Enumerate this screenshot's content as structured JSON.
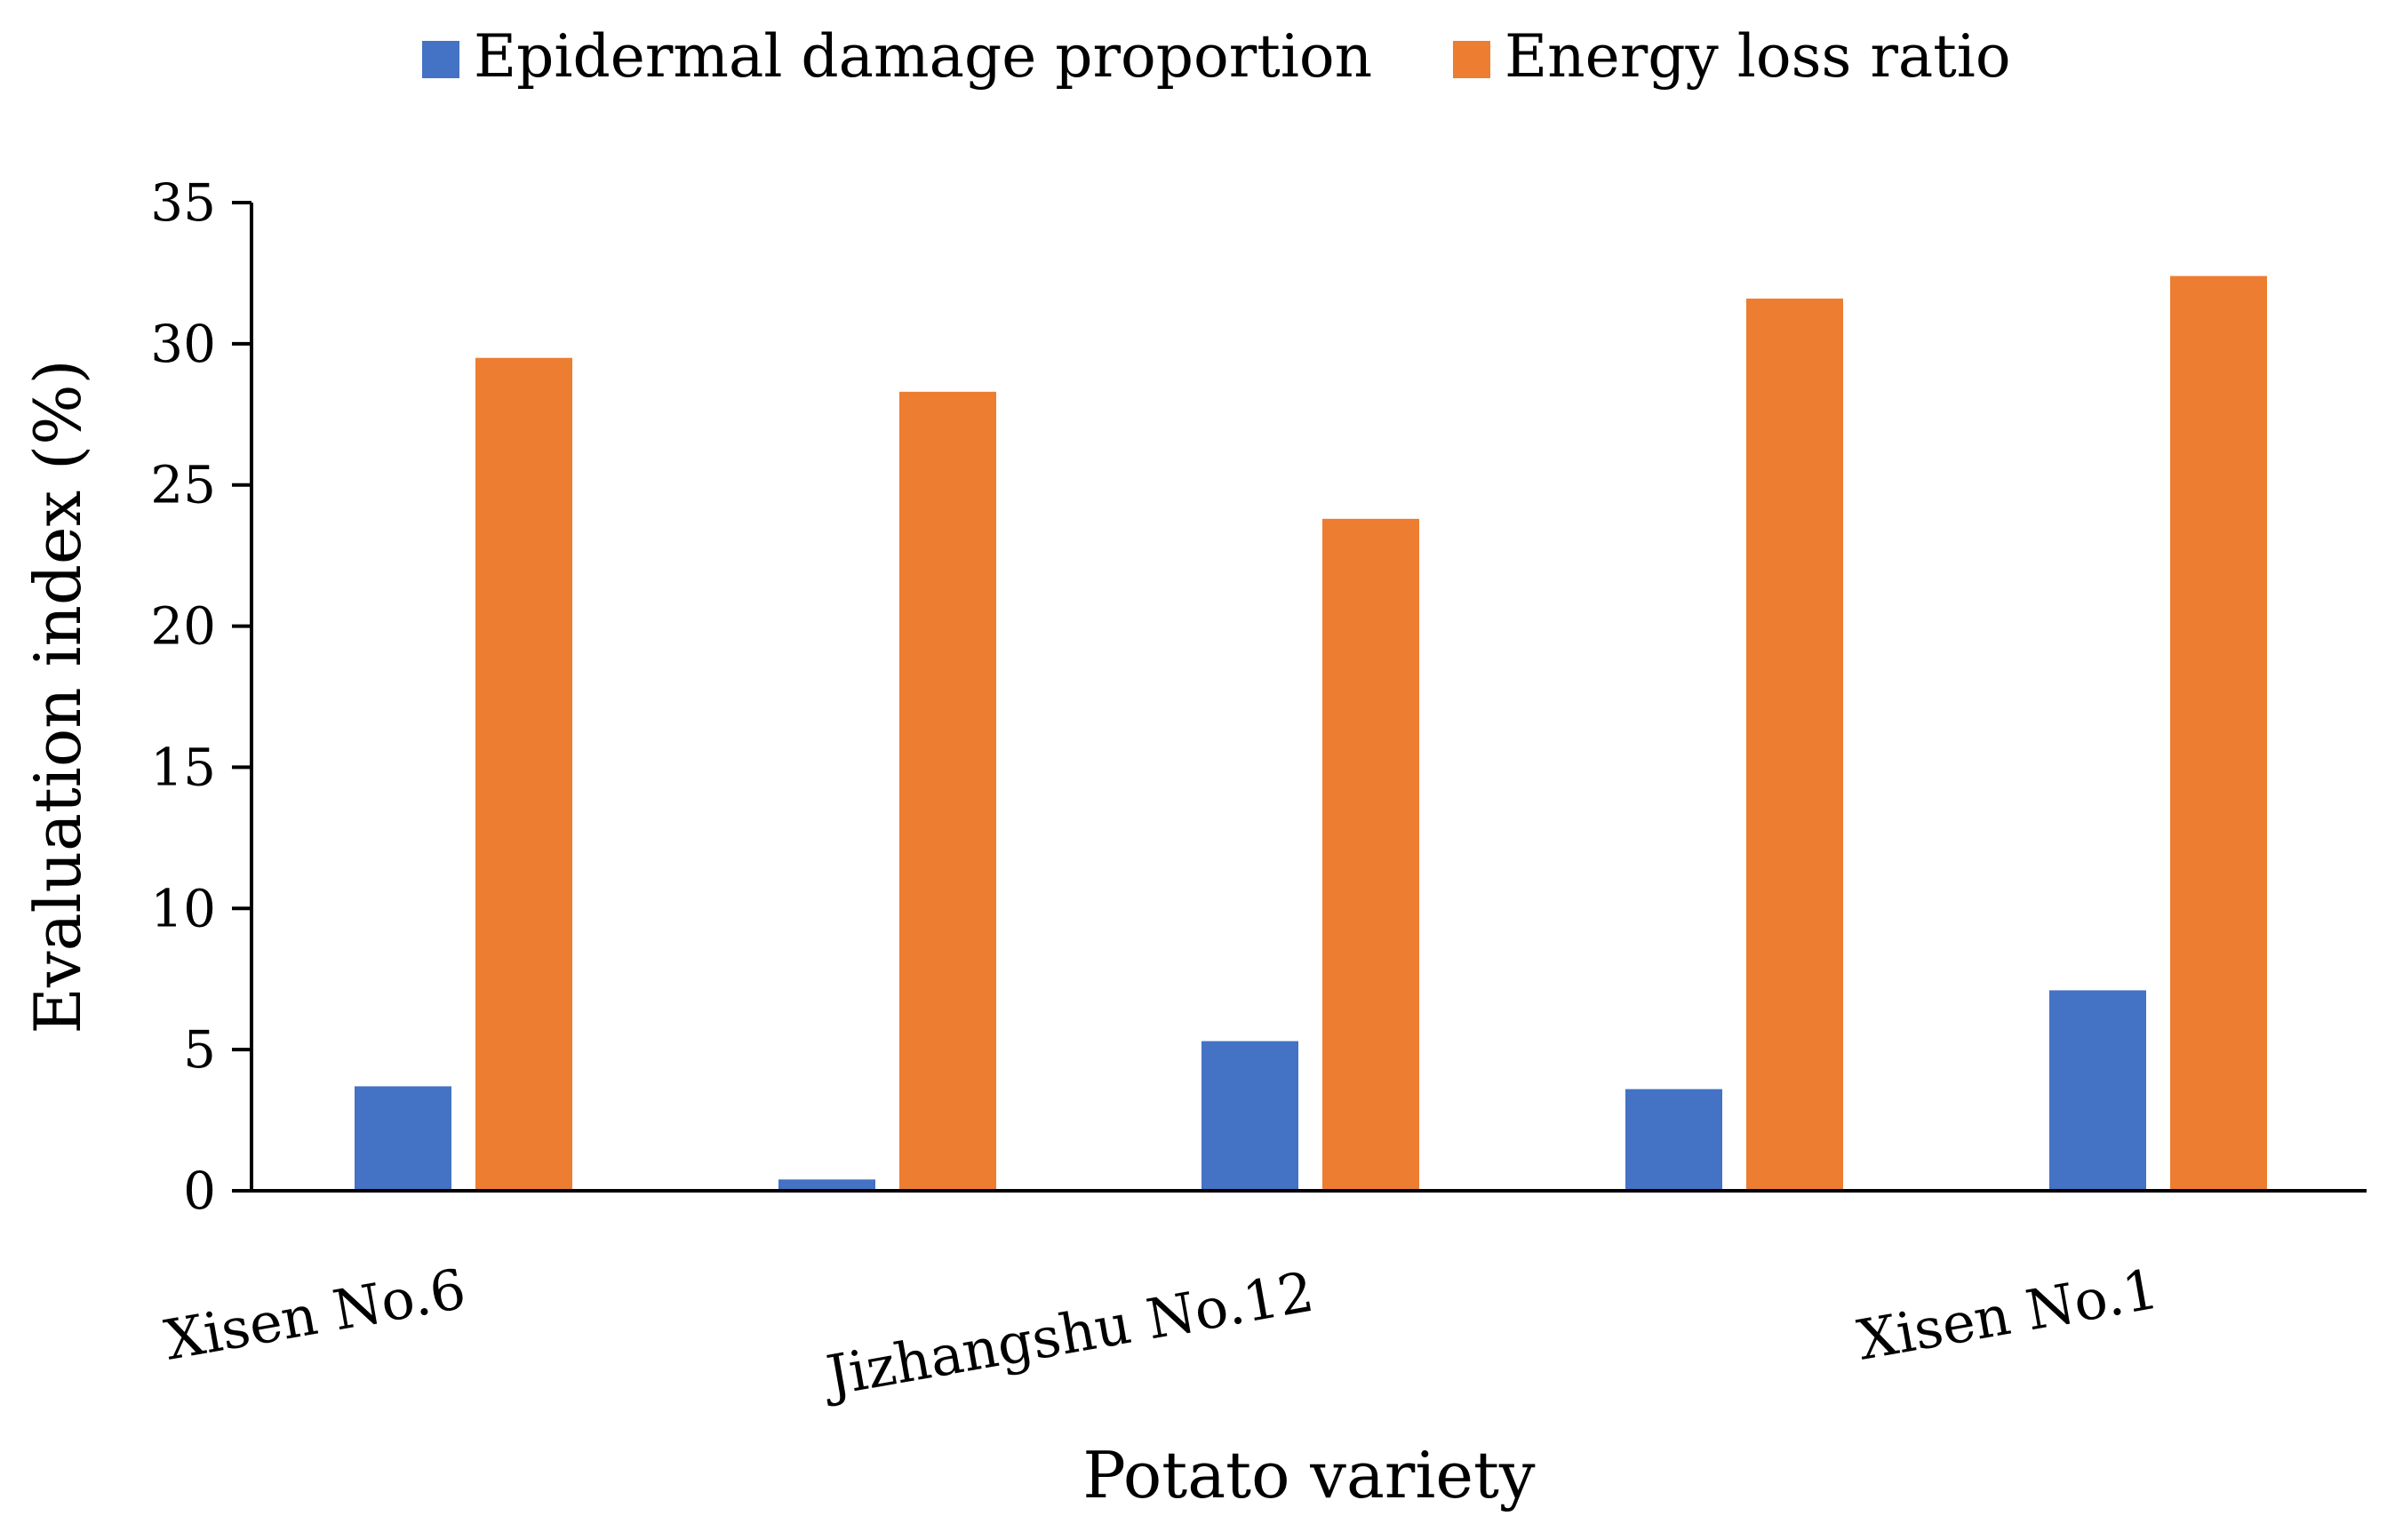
{
  "chart_data": {
    "type": "bar",
    "categories": [
      "Xisen No.6",
      "",
      "Jizhangshu No.12",
      "",
      "Xisen No.1"
    ],
    "series": [
      {
        "name": "Epidermal damage proportion",
        "color": "#4472C4",
        "values": [
          3.7,
          0.4,
          5.3,
          3.6,
          7.1
        ]
      },
      {
        "name": "Energy loss ratio",
        "color": "#ED7D31",
        "values": [
          29.5,
          28.3,
          23.8,
          31.6,
          32.4
        ]
      }
    ],
    "xlabel": "Potato variety",
    "ylabel": "Evaluation index (%)",
    "ylim": [
      0,
      35
    ],
    "yticks": [
      0,
      5,
      10,
      15,
      20,
      25,
      30,
      35
    ],
    "grid": false,
    "legend": "top-center"
  }
}
